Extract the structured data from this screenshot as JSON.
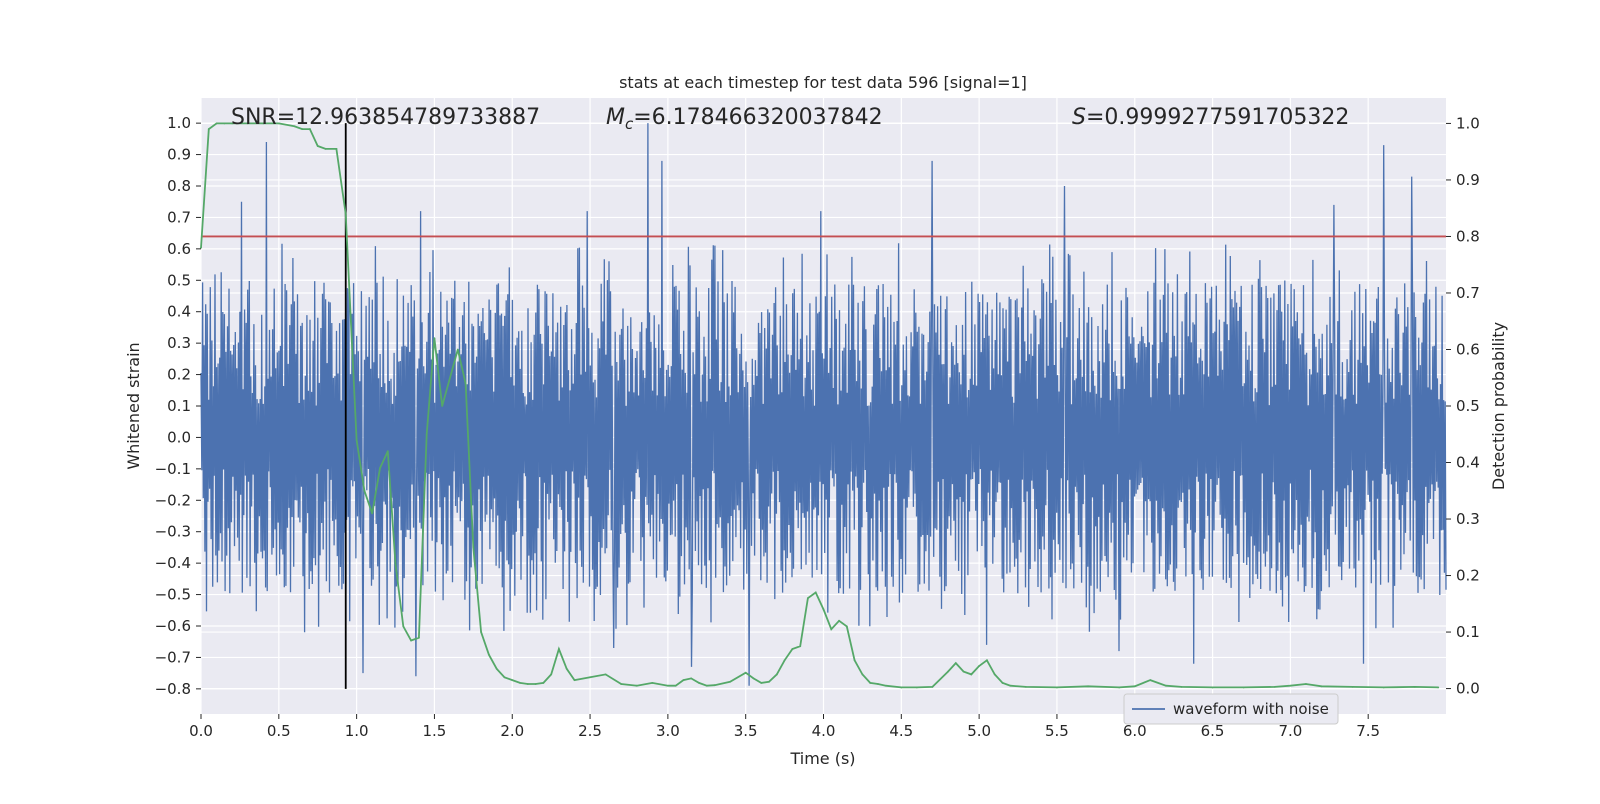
{
  "chart_data": {
    "type": "line",
    "title": "stats at each timestep for test data 596 [signal=1]",
    "xlabel": "Time (s)",
    "ylabel_left": "Whitened strain",
    "ylabel_right": "Detection probability",
    "xlim": [
      0,
      8
    ],
    "ylim_left": [
      -0.88,
      1.08
    ],
    "ylim_right": [
      -0.045,
      1.045
    ],
    "x_ticks": [
      0.0,
      0.5,
      1.0,
      1.5,
      2.0,
      2.5,
      3.0,
      3.5,
      4.0,
      4.5,
      5.0,
      5.5,
      6.0,
      6.5,
      7.0,
      7.5
    ],
    "x_tick_labels": [
      "0.0",
      "0.5",
      "1.0",
      "1.5",
      "2.0",
      "2.5",
      "3.0",
      "3.5",
      "4.0",
      "4.5",
      "5.0",
      "5.5",
      "6.0",
      "6.5",
      "7.0",
      "7.5"
    ],
    "y_left_ticks": [
      1.0,
      0.9,
      0.8,
      0.7,
      0.6,
      0.5,
      0.4,
      0.3,
      0.2,
      0.1,
      0.0,
      -0.1,
      -0.2,
      -0.3,
      -0.4,
      -0.5,
      -0.6,
      -0.7,
      -0.8
    ],
    "y_left_tick_labels": [
      "1.0",
      "0.9",
      "0.8",
      "0.7",
      "0.6",
      "0.5",
      "0.4",
      "0.3",
      "0.2",
      "0.1",
      "0.0",
      "−0.1",
      "−0.2",
      "−0.3",
      "−0.4",
      "−0.5",
      "−0.6",
      "−0.7",
      "−0.8"
    ],
    "y_right_ticks": [
      1.0,
      0.9,
      0.8,
      0.7,
      0.6,
      0.5,
      0.4,
      0.3,
      0.2,
      0.1,
      0.0
    ],
    "y_right_tick_labels": [
      "1.0",
      "0.9",
      "0.8",
      "0.7",
      "0.6",
      "0.5",
      "0.4",
      "0.3",
      "0.2",
      "0.1",
      "0.0"
    ],
    "grid": true,
    "annotations": {
      "snr": "SNR=12.963854789733887",
      "mc_symbol": "M",
      "mc_subscript": "c",
      "mc_value": "=6.178466320037842",
      "s_symbol": "S",
      "s_value": "=0.9999277591705322"
    },
    "threshold_probability": 0.8,
    "marker_time": 0.93,
    "marker_strain_range": [
      -0.8,
      1.0
    ],
    "series": [
      {
        "name": "waveform with noise",
        "axis": "left",
        "color": "#4c72b0",
        "x_range": [
          0,
          8
        ],
        "sample_count": 1600,
        "envelope_typical": [
          -0.47,
          0.47
        ],
        "peaks": [
          {
            "x": 0.42,
            "y": 0.94
          },
          {
            "x": 0.26,
            "y": 0.75
          },
          {
            "x": 2.87,
            "y": 1.0
          },
          {
            "x": 2.96,
            "y": 0.88
          },
          {
            "x": 4.7,
            "y": 0.88
          },
          {
            "x": 7.6,
            "y": 0.93
          },
          {
            "x": 7.78,
            "y": 0.83
          },
          {
            "x": 5.55,
            "y": 0.8
          },
          {
            "x": 7.28,
            "y": 0.74
          },
          {
            "x": 3.98,
            "y": 0.72
          },
          {
            "x": 1.41,
            "y": 0.72
          },
          {
            "x": 2.48,
            "y": 0.72
          }
        ],
        "troughs": [
          {
            "x": 1.38,
            "y": -0.76
          },
          {
            "x": 3.52,
            "y": -0.79
          },
          {
            "x": 5.05,
            "y": -0.66
          },
          {
            "x": 3.15,
            "y": -0.73
          },
          {
            "x": 1.04,
            "y": -0.75
          },
          {
            "x": 6.38,
            "y": -0.72
          },
          {
            "x": 7.47,
            "y": -0.72
          },
          {
            "x": 5.9,
            "y": -0.68
          },
          {
            "x": 2.65,
            "y": -0.67
          }
        ]
      },
      {
        "axis": "right",
        "color": "#55a868",
        "x": [
          0.0,
          0.05,
          0.1,
          0.15,
          0.2,
          0.3,
          0.4,
          0.5,
          0.6,
          0.65,
          0.7,
          0.75,
          0.8,
          0.87,
          0.93,
          1.0,
          1.05,
          1.1,
          1.15,
          1.2,
          1.25,
          1.3,
          1.35,
          1.4,
          1.45,
          1.5,
          1.55,
          1.65,
          1.7,
          1.75,
          1.8,
          1.85,
          1.9,
          1.95,
          2.0,
          2.05,
          2.1,
          2.15,
          2.2,
          2.25,
          2.3,
          2.35,
          2.4,
          2.5,
          2.6,
          2.7,
          2.8,
          2.9,
          3.0,
          3.05,
          3.1,
          3.15,
          3.2,
          3.25,
          3.3,
          3.4,
          3.5,
          3.55,
          3.6,
          3.65,
          3.7,
          3.75,
          3.8,
          3.85,
          3.9,
          3.95,
          4.0,
          4.05,
          4.1,
          4.15,
          4.2,
          4.25,
          4.3,
          4.35,
          4.4,
          4.5,
          4.6,
          4.7,
          4.8,
          4.85,
          4.9,
          4.95,
          5.0,
          5.05,
          5.1,
          5.15,
          5.2,
          5.3,
          5.5,
          5.7,
          5.9,
          6.0,
          6.1,
          6.2,
          6.3,
          6.5,
          6.7,
          6.9,
          7.0,
          7.1,
          7.2,
          7.4,
          7.6,
          7.8,
          7.95
        ],
        "y": [
          0.78,
          0.99,
          1.0,
          1.0,
          1.0,
          1.0,
          1.0,
          1.0,
          0.995,
          0.99,
          0.99,
          0.96,
          0.955,
          0.955,
          0.84,
          0.44,
          0.35,
          0.31,
          0.39,
          0.42,
          0.22,
          0.11,
          0.085,
          0.09,
          0.45,
          0.62,
          0.5,
          0.6,
          0.54,
          0.25,
          0.1,
          0.06,
          0.035,
          0.02,
          0.015,
          0.01,
          0.008,
          0.008,
          0.01,
          0.025,
          0.07,
          0.035,
          0.015,
          0.02,
          0.025,
          0.008,
          0.005,
          0.01,
          0.005,
          0.005,
          0.015,
          0.018,
          0.01,
          0.005,
          0.006,
          0.012,
          0.028,
          0.018,
          0.01,
          0.012,
          0.025,
          0.05,
          0.07,
          0.075,
          0.16,
          0.17,
          0.14,
          0.105,
          0.12,
          0.11,
          0.05,
          0.025,
          0.01,
          0.008,
          0.005,
          0.002,
          0.002,
          0.003,
          0.03,
          0.045,
          0.03,
          0.025,
          0.04,
          0.05,
          0.025,
          0.01,
          0.005,
          0.003,
          0.002,
          0.004,
          0.002,
          0.004,
          0.015,
          0.005,
          0.003,
          0.002,
          0.002,
          0.003,
          0.005,
          0.008,
          0.004,
          0.003,
          0.002,
          0.003,
          0.002
        ]
      }
    ],
    "legend": {
      "position": "lower center-right",
      "entries": [
        {
          "label": "waveform with noise",
          "color": "#4c72b0"
        }
      ]
    }
  }
}
